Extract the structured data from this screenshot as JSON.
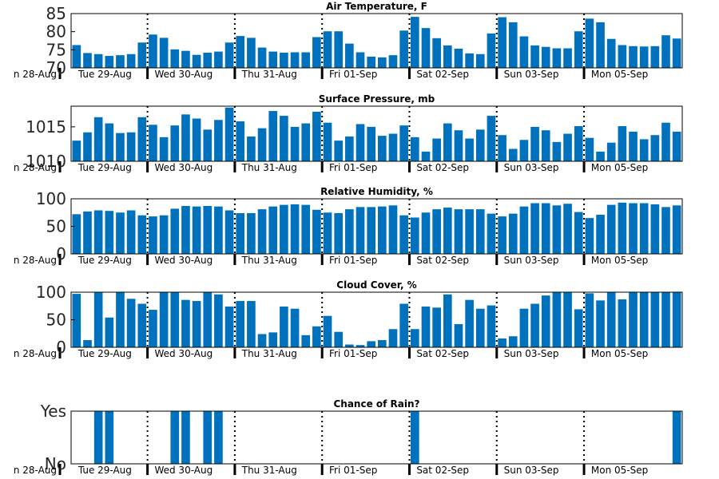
{
  "colors": {
    "bar": "#0072BD",
    "axis": "#000000",
    "daymarker": "#000000"
  },
  "x_labels": [
    "n 28-Aug",
    "Tue 29-Aug",
    "Wed 30-Aug",
    "Thu 31-Aug",
    "Fri 01-Sep",
    "Sat 02-Sep",
    "Sun 03-Sep",
    "Mon 05-Sep"
  ],
  "chart_data": [
    {
      "type": "bar",
      "title": "Air Temperature, F",
      "ylim": [
        70,
        85
      ],
      "yticks": [
        70,
        75,
        80,
        85
      ],
      "values": [
        76.3,
        74.1,
        73.8,
        73.3,
        73.5,
        73.8,
        77.0,
        79.2,
        78.3,
        75.1,
        74.7,
        73.6,
        74.2,
        74.5,
        77.0,
        78.8,
        78.3,
        75.6,
        74.5,
        74.2,
        74.3,
        74.3,
        78.5,
        80.1,
        80.1,
        76.7,
        74.3,
        73.1,
        72.9,
        73.5,
        80.3,
        84.1,
        81.0,
        78.2,
        76.2,
        75.3,
        74.0,
        73.8,
        79.5,
        84.0,
        82.6,
        78.7,
        76.2,
        75.8,
        75.4,
        75.4,
        80.1,
        83.6,
        82.6,
        78.0,
        76.3,
        76.0,
        75.9,
        76.0,
        79.0,
        78.1
      ]
    },
    {
      "type": "bar",
      "title": "Surface Pressure, mb",
      "ylim": [
        1010,
        1018
      ],
      "yticks": [
        1010,
        1015
      ],
      "values": [
        1013.0,
        1014.2,
        1016.4,
        1015.5,
        1014.1,
        1014.2,
        1016.4,
        1015.3,
        1013.5,
        1015.2,
        1016.8,
        1016.2,
        1014.6,
        1016.0,
        1017.8,
        1015.8,
        1013.6,
        1014.8,
        1017.3,
        1016.6,
        1015.0,
        1015.5,
        1017.2,
        1015.6,
        1013.0,
        1013.6,
        1015.4,
        1015.0,
        1013.7,
        1014.0,
        1015.2,
        1013.5,
        1011.4,
        1013.3,
        1015.5,
        1014.5,
        1013.3,
        1014.6,
        1016.6,
        1013.8,
        1011.8,
        1013.1,
        1015.0,
        1014.5,
        1012.8,
        1014.0,
        1015.1,
        1013.4,
        1011.4,
        1012.7,
        1015.1,
        1014.3,
        1013.2,
        1013.8,
        1015.6,
        1014.3
      ]
    },
    {
      "type": "bar",
      "title": "Relative Humidity, %",
      "ylim": [
        0,
        100
      ],
      "yticks": [
        0,
        50,
        100
      ],
      "values": [
        72,
        77,
        79,
        78,
        75,
        79,
        70,
        68,
        70,
        82,
        87,
        86,
        87,
        86,
        79,
        74,
        74,
        81,
        86,
        89,
        90,
        89,
        80,
        75,
        74,
        81,
        85,
        85,
        86,
        88,
        70,
        66,
        75,
        81,
        84,
        81,
        81,
        81,
        73,
        68,
        73,
        86,
        92,
        92,
        88,
        91,
        76,
        65,
        71,
        89,
        93,
        92,
        92,
        90,
        85,
        88
      ]
    },
    {
      "type": "bar",
      "title": "Cloud Cover, %",
      "ylim": [
        0,
        100
      ],
      "yticks": [
        0,
        50,
        100
      ],
      "values": [
        97,
        13,
        100,
        54,
        100,
        88,
        79,
        68,
        100,
        100,
        86,
        84,
        100,
        96,
        74,
        84,
        84,
        24,
        27,
        74,
        70,
        22,
        38,
        57,
        28,
        5,
        4,
        11,
        13,
        33,
        79,
        33,
        74,
        72,
        96,
        42,
        86,
        70,
        76,
        16,
        20,
        70,
        79,
        94,
        100,
        100,
        69,
        98,
        85,
        100,
        87,
        100,
        100,
        100,
        100,
        100
      ]
    },
    {
      "type": "bar",
      "title": "Chance of Rain?",
      "ylim": [
        0,
        1
      ],
      "yticks": [
        0,
        1
      ],
      "yticklabels": [
        "No",
        "Yes"
      ],
      "values": [
        0,
        0,
        1,
        1,
        0,
        0,
        0,
        0,
        0,
        1,
        1,
        0,
        1,
        1,
        0,
        0,
        0,
        0,
        0,
        0,
        0,
        0,
        0,
        0,
        0,
        0,
        0,
        0,
        0,
        0,
        0,
        1,
        0,
        0,
        0,
        0,
        0,
        0,
        0,
        0,
        0,
        0,
        0,
        0,
        0,
        0,
        0,
        0,
        0,
        0,
        0,
        0,
        0,
        0,
        0,
        1
      ]
    }
  ]
}
